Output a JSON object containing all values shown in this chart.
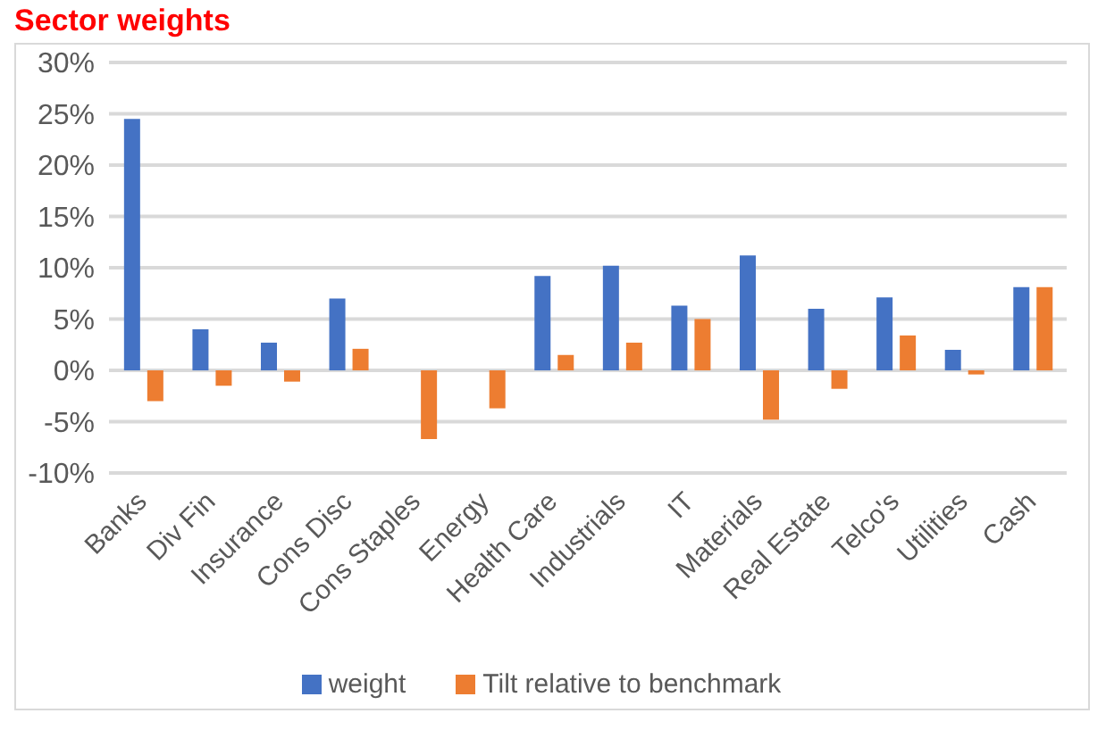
{
  "chart_data": {
    "type": "bar",
    "title": "Sector weights",
    "categories": [
      "Banks",
      "Div Fin",
      "Insurance",
      "Cons Disc",
      "Cons Staples",
      "Energy",
      "Health Care",
      "Industrials",
      "IT",
      "Materials",
      "Real Estate",
      "Telco's",
      "Utilities",
      "Cash"
    ],
    "series": [
      {
        "name": "weight",
        "color": "#4472c4",
        "values": [
          24.5,
          4,
          2.7,
          7,
          0,
          0,
          9.2,
          10.2,
          6.3,
          11.2,
          6,
          7.1,
          2,
          8.1
        ]
      },
      {
        "name": "Tilt relative to benchmark",
        "color": "#ed7d31",
        "values": [
          -3,
          -1.5,
          -1.1,
          2.1,
          -6.7,
          -3.7,
          1.5,
          2.7,
          5,
          -4.8,
          -1.8,
          3.4,
          -0.4,
          8.1
        ]
      }
    ],
    "ylim": [
      -10,
      30
    ],
    "yticks": [
      {
        "value": -10,
        "label": "-10%"
      },
      {
        "value": -5,
        "label": "-5%"
      },
      {
        "value": 0,
        "label": "0%"
      },
      {
        "value": 5,
        "label": "5%"
      },
      {
        "value": 10,
        "label": "10%"
      },
      {
        "value": 15,
        "label": "15%"
      },
      {
        "value": 20,
        "label": "20%"
      },
      {
        "value": 25,
        "label": "25%"
      },
      {
        "value": 30,
        "label": "30%"
      }
    ],
    "grid": "y",
    "legend": "bottom"
  }
}
